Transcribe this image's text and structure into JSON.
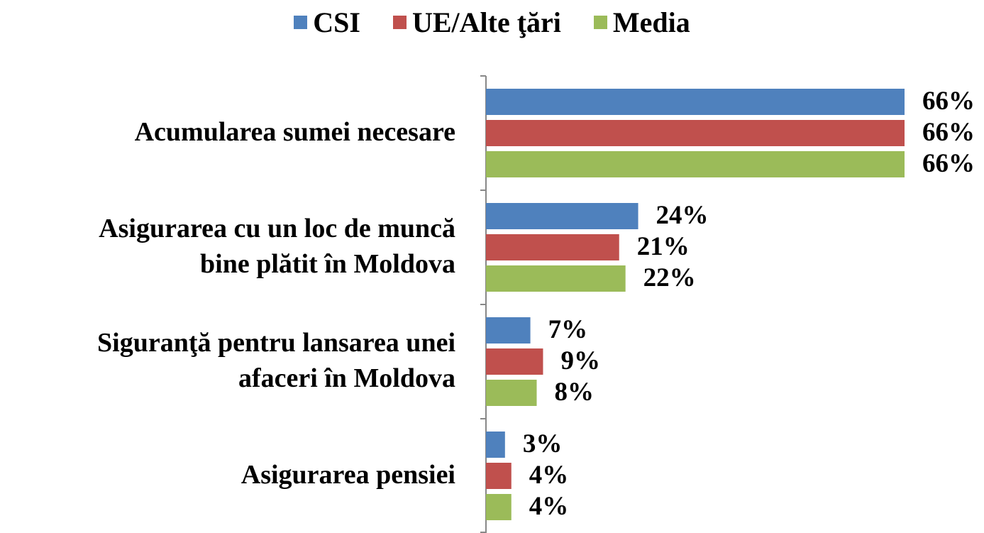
{
  "chart_data": {
    "type": "hbar",
    "categories": [
      "Acumularea sumei necesare",
      "Asigurarea cu un loc de muncă\nbine plătit  în Moldova",
      "Siguranţă pentru lansarea unei\nafaceri în Moldova",
      "Asigurarea pensiei"
    ],
    "series": [
      {
        "name": "CSI",
        "color": "#4f81bd",
        "values": [
          66,
          24,
          7,
          3
        ],
        "value_labels": [
          "66%",
          "24%",
          "7%",
          "3%"
        ]
      },
      {
        "name": "UE/Alte ţări",
        "color": "#c0504d",
        "values": [
          66,
          21,
          9,
          4
        ],
        "value_labels": [
          "66%",
          "21%",
          "9%",
          "4%"
        ]
      },
      {
        "name": "Media",
        "color": "#9bbb59",
        "values": [
          66,
          22,
          8,
          4
        ],
        "value_labels": [
          "66%",
          "22%",
          "8%",
          "4%"
        ]
      }
    ],
    "legend": "top"
  }
}
